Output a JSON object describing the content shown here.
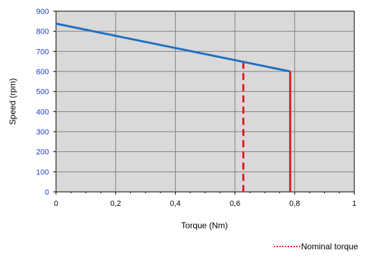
{
  "chart_data": {
    "type": "line",
    "xlabel": "Torque (Nm)",
    "ylabel": "Speed (rpm)",
    "xlim": [
      0,
      1
    ],
    "ylim": [
      0,
      900
    ],
    "x_ticks": [
      "0",
      "0,2",
      "0,4",
      "0,6",
      "0,8",
      "1"
    ],
    "x_tick_values": [
      0,
      0.2,
      0.4,
      0.6,
      0.8,
      1
    ],
    "y_ticks": [
      "0",
      "100",
      "200",
      "300",
      "400",
      "500",
      "600",
      "700",
      "800",
      "900"
    ],
    "y_tick_values": [
      0,
      100,
      200,
      300,
      400,
      500,
      600,
      700,
      800,
      900
    ],
    "grid": true,
    "series": [
      {
        "points": [
          [
            0,
            838
          ],
          [
            0.785,
            600
          ]
        ],
        "color": "#1f6fc2"
      }
    ],
    "vertical_lines": [
      {
        "x": 0.628,
        "y_top": 648,
        "color": "#e02020",
        "style": "dashed",
        "legend": "Nominal torque"
      },
      {
        "x": 0.785,
        "y_top": 600,
        "color": "#e02020",
        "style": "solid"
      }
    ],
    "legend_entries": [
      "Nominal torque"
    ],
    "legend_position": "bottom-right",
    "plot_background": "#d9d9d9",
    "ytick_color": "#1f3bd6"
  }
}
